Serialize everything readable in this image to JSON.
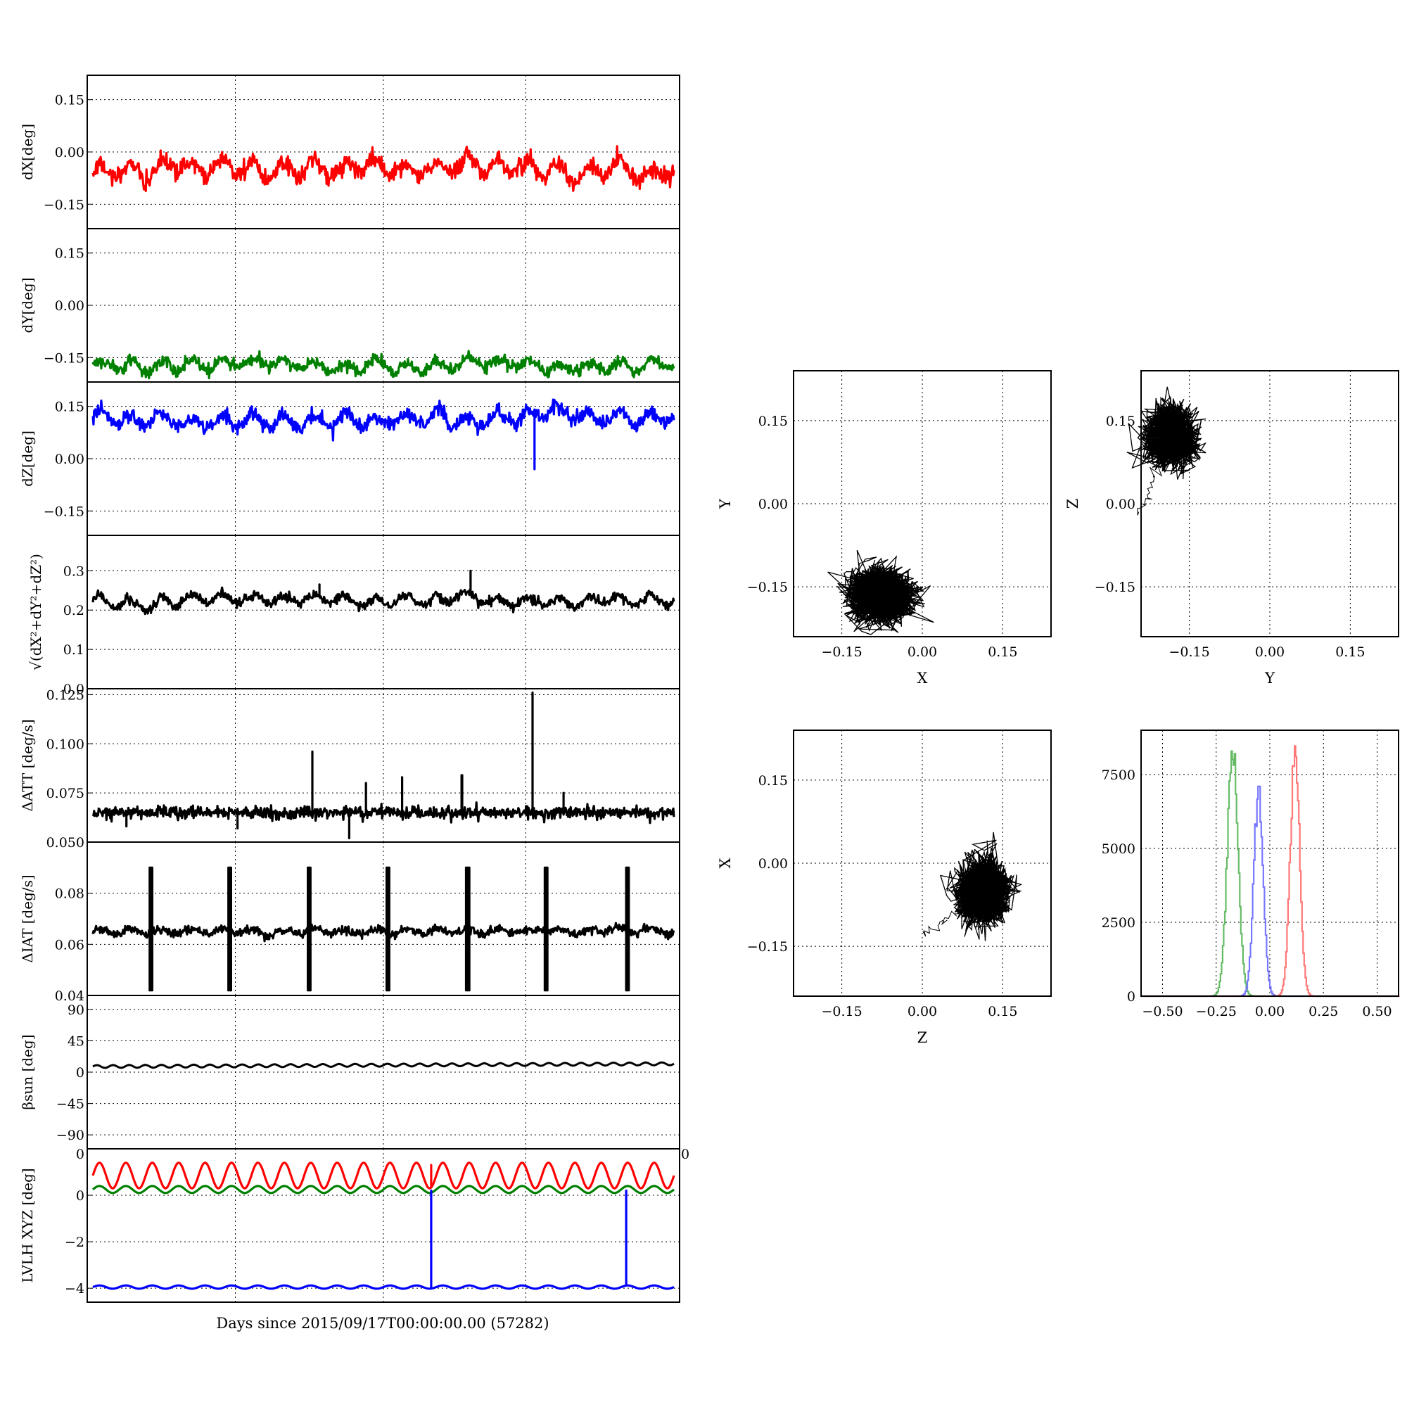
{
  "figure": {
    "xlabel": "Days since 2015/09/17T00:00:00.00 (57282)"
  },
  "colors": {
    "x": "#ff0000",
    "y": "#008000",
    "z": "#0000ff",
    "black": "#000000"
  },
  "time_panels": [
    {
      "id": "dx",
      "ylabel": "dX[deg]",
      "ylim": [
        -0.22,
        0.22
      ],
      "yticks": [
        -0.15,
        0.0,
        0.15
      ],
      "ytick_labels": [
        "−0.15",
        "0.00",
        "0.15"
      ],
      "series": [
        {
          "color": "#ff0000",
          "baseline": -0.055,
          "amp": 0.035,
          "noise": 0.012,
          "sawtooth": true
        }
      ]
    },
    {
      "id": "dy",
      "ylabel": "dY[deg]",
      "ylim": [
        -0.22,
        0.22
      ],
      "yticks": [
        -0.15,
        0.0,
        0.15
      ],
      "ytick_labels": [
        "−0.15",
        "0.00",
        "0.15"
      ],
      "series": [
        {
          "color": "#008000",
          "baseline": -0.17,
          "amp": 0.025,
          "noise": 0.008,
          "sawtooth": true
        }
      ]
    },
    {
      "id": "dz",
      "ylabel": "dZ[deg]",
      "ylim": [
        -0.22,
        0.22
      ],
      "yticks": [
        -0.15,
        0.0,
        0.15
      ],
      "ytick_labels": [
        "−0.15",
        "0.00",
        "0.15"
      ],
      "series": [
        {
          "color": "#0000ff",
          "baseline": 0.115,
          "amp": 0.03,
          "noise": 0.01,
          "sawtooth": true,
          "dips": [
            {
              "x": 0.76,
              "value": -0.03
            }
          ]
        }
      ]
    },
    {
      "id": "dr",
      "ylabel": "√(dX²+dY²+dZ²)",
      "ylim": [
        0.0,
        0.39
      ],
      "yticks": [
        0.0,
        0.1,
        0.2,
        0.3
      ],
      "ytick_labels": [
        "0.0",
        "0.1",
        "0.2",
        "0.3"
      ],
      "series": [
        {
          "color": "#000000",
          "baseline": 0.225,
          "amp": 0.02,
          "noise": 0.006,
          "sawtooth": true,
          "spikes": [
            {
              "x": 0.65,
              "value": 0.3
            },
            {
              "x": 0.39,
              "value": 0.265
            }
          ]
        }
      ]
    },
    {
      "id": "datt",
      "ylabel": "ΔATT [deg/s]",
      "ylim": [
        0.05,
        0.128
      ],
      "yticks": [
        0.05,
        0.075,
        0.1,
        0.125
      ],
      "ytick_labels": [
        "0.050",
        "0.075",
        "0.100",
        "0.125"
      ],
      "series": [
        {
          "color": "#000000",
          "baseline": 0.065,
          "amp": 0.0,
          "noise": 0.0015,
          "sawtooth": false,
          "spikes": [
            {
              "x": 0.757,
              "value": 0.126
            },
            {
              "x": 0.378,
              "value": 0.096
            },
            {
              "x": 0.635,
              "value": 0.084
            },
            {
              "x": 0.532,
              "value": 0.083
            },
            {
              "x": 0.81,
              "value": 0.075
            },
            {
              "x": 0.47,
              "value": 0.08
            }
          ],
          "dips": [
            {
              "x": 0.441,
              "value": 0.052
            },
            {
              "x": 0.249,
              "value": 0.057
            },
            {
              "x": 0.058,
              "value": 0.058
            }
          ]
        }
      ]
    },
    {
      "id": "diat",
      "ylabel": "ΔIAT [deg/s]",
      "ylim": [
        0.04,
        0.1
      ],
      "yticks": [
        0.04,
        0.06,
        0.08
      ],
      "ytick_labels": [
        "0.04",
        "0.06",
        "0.08"
      ],
      "series": [
        {
          "color": "#000000",
          "baseline": 0.065,
          "amp": 0.0015,
          "noise": 0.0008,
          "sawtooth": true,
          "burst": {
            "positions": [
              0.1,
              0.236,
              0.372,
              0.508,
              0.645,
              0.78,
              0.92
            ],
            "low": 0.042,
            "high": 0.09
          }
        }
      ]
    },
    {
      "id": "beta",
      "ylabel": "βsun [deg]",
      "ylim": [
        -110,
        110
      ],
      "yticks": [
        -90,
        -45,
        0,
        45,
        90
      ],
      "ytick_labels": [
        "−90",
        "−45",
        "0",
        "45",
        "90"
      ],
      "series": [
        {
          "color": "#000000",
          "baseline": 8,
          "amp": 2,
          "noise": 0,
          "sine": 36,
          "trend": 4
        }
      ]
    },
    {
      "id": "lvlh",
      "ylabel": "LVLH XYZ [deg]",
      "ylim": [
        -4.6,
        2.0
      ],
      "yticks": [
        -4,
        -2,
        0
      ],
      "ytick_labels": [
        "−4",
        "−2",
        "0"
      ],
      "top_tick_label": "0",
      "right_tick_label": "0",
      "series": [
        {
          "color": "#ff0000",
          "baseline": 0.85,
          "amp": 0.55,
          "noise": 0,
          "sine": 22,
          "spikes": [
            {
              "x": 0.582,
              "value": 1.3
            }
          ]
        },
        {
          "color": "#008000",
          "baseline": 0.25,
          "amp": 0.15,
          "noise": 0,
          "sine": 22
        },
        {
          "color": "#0000ff",
          "baseline": -3.95,
          "amp": 0.07,
          "noise": 0,
          "sine": 22,
          "spikes": [
            {
              "x": 0.582,
              "value": 0.2
            },
            {
              "x": 0.918,
              "value": 0.2
            }
          ]
        }
      ]
    }
  ],
  "scatter_panels": [
    {
      "id": "xy",
      "xlabel": "X",
      "ylabel": "Y",
      "center": [
        -0.075,
        -0.165
      ],
      "spread": [
        0.035,
        0.028
      ],
      "tail": null
    },
    {
      "id": "yz",
      "xlabel": "Y",
      "ylabel": "Z",
      "center": [
        -0.185,
        0.12
      ],
      "spread": [
        0.025,
        0.03
      ],
      "tail": {
        "to": [
          -0.24,
          -0.02
        ]
      }
    },
    {
      "id": "zx",
      "xlabel": "Z",
      "ylabel": "X",
      "center": [
        0.115,
        -0.055
      ],
      "spread": [
        0.025,
        0.035
      ],
      "tail": {
        "to": [
          0.0,
          -0.13
        ]
      }
    }
  ],
  "scatter_axes": {
    "lim": [
      -0.24,
      0.24
    ],
    "ticks": [
      -0.15,
      0.0,
      0.15
    ],
    "tick_labels": [
      "−0.15",
      "0.00",
      "0.15"
    ]
  },
  "histogram": {
    "xlim": [
      -0.6,
      0.6
    ],
    "ylim": [
      0,
      9000
    ],
    "xticks": [
      -0.5,
      -0.25,
      0.0,
      0.25,
      0.5
    ],
    "xtick_labels": [
      "−0.50",
      "−0.25",
      "0.00",
      "0.25",
      "0.50"
    ],
    "yticks": [
      0,
      2500,
      5000,
      7500
    ],
    "ytick_labels": [
      "0",
      "2500",
      "5000",
      "7500"
    ],
    "series": [
      {
        "color": "#66bb66",
        "center": -0.175,
        "sigma": 0.025,
        "peak": 8600
      },
      {
        "color": "#7777ff",
        "center": -0.055,
        "sigma": 0.022,
        "peak": 7100
      },
      {
        "color": "#ff7777",
        "center": 0.115,
        "sigma": 0.022,
        "peak": 8500
      }
    ]
  },
  "chart_data": [
    {
      "type": "line",
      "title": "",
      "xlabel": "Days since 2015/09/17T00:00:00.00 (57282)",
      "ylabel": "dX[deg]",
      "ylim": [
        -0.22,
        0.22
      ],
      "series": [
        {
          "color": "#ff0000",
          "approx_mean": -0.055
        }
      ]
    },
    {
      "type": "line",
      "title": "",
      "ylabel": "dY[deg]",
      "ylim": [
        -0.22,
        0.22
      ],
      "series": [
        {
          "color": "#008000",
          "approx_mean": -0.17
        }
      ]
    },
    {
      "type": "line",
      "title": "",
      "ylabel": "dZ[deg]",
      "ylim": [
        -0.22,
        0.22
      ],
      "series": [
        {
          "color": "#0000ff",
          "approx_mean": 0.115
        }
      ]
    },
    {
      "type": "line",
      "title": "",
      "ylabel": "√(dX²+dY²+dZ²)",
      "ylim": [
        0.0,
        0.39
      ],
      "series": [
        {
          "color": "#000000",
          "approx_mean": 0.225
        }
      ]
    },
    {
      "type": "line",
      "title": "",
      "ylabel": "ΔATT [deg/s]",
      "ylim": [
        0.05,
        0.128
      ],
      "series": [
        {
          "color": "#000000",
          "approx_mean": 0.065
        }
      ]
    },
    {
      "type": "line",
      "title": "",
      "ylabel": "ΔIAT [deg/s]",
      "ylim": [
        0.04,
        0.1
      ],
      "series": [
        {
          "color": "#000000",
          "approx_mean": 0.065
        }
      ]
    },
    {
      "type": "line",
      "title": "",
      "ylabel": "βsun [deg]",
      "ylim": [
        -110,
        110
      ],
      "series": [
        {
          "color": "#000000",
          "approx_mean": 10
        }
      ]
    },
    {
      "type": "line",
      "title": "",
      "ylabel": "LVLH XYZ [deg]",
      "ylim": [
        -4.6,
        2.0
      ],
      "series": [
        {
          "color": "#ff0000",
          "approx_mean": 0.85
        },
        {
          "color": "#008000",
          "approx_mean": 0.25
        },
        {
          "color": "#0000ff",
          "approx_mean": -3.95
        }
      ]
    },
    {
      "type": "scatter",
      "xlabel": "X",
      "ylabel": "Y",
      "xlim": [
        -0.24,
        0.24
      ],
      "ylim": [
        -0.24,
        0.24
      ],
      "approx_center": [
        -0.075,
        -0.165
      ]
    },
    {
      "type": "scatter",
      "xlabel": "Y",
      "ylabel": "Z",
      "xlim": [
        -0.24,
        0.24
      ],
      "ylim": [
        -0.24,
        0.24
      ],
      "approx_center": [
        -0.185,
        0.12
      ]
    },
    {
      "type": "scatter",
      "xlabel": "Z",
      "ylabel": "X",
      "xlim": [
        -0.24,
        0.24
      ],
      "ylim": [
        -0.24,
        0.24
      ],
      "approx_center": [
        0.115,
        -0.055
      ]
    },
    {
      "type": "histogram",
      "xlim": [
        -0.6,
        0.6
      ],
      "ylim": [
        0,
        9000
      ],
      "series": [
        {
          "color": "#66bb66",
          "peak_x": -0.175,
          "peak_count": 8600
        },
        {
          "color": "#7777ff",
          "peak_x": -0.055,
          "peak_count": 7100
        },
        {
          "color": "#ff7777",
          "peak_x": 0.115,
          "peak_count": 8500
        }
      ]
    }
  ]
}
